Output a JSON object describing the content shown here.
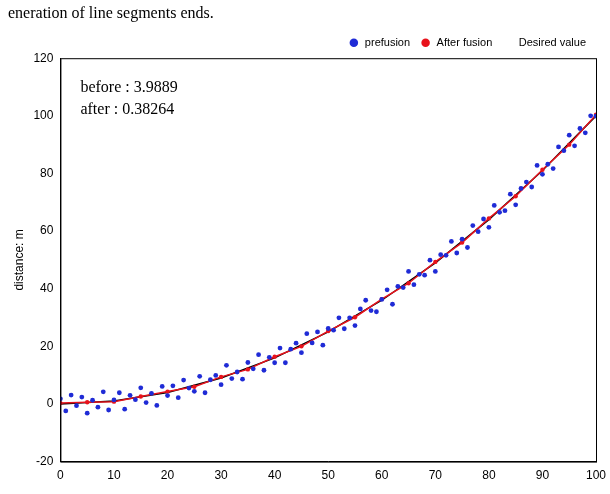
{
  "chart_data": {
    "type": "scatter",
    "title": "eneration of line segments ends.",
    "y_label": "distance: m",
    "annotations": [
      "before : 3.9889",
      "after : 0.38264"
    ],
    "xlim": [
      0,
      100
    ],
    "xticks": [
      0,
      10,
      20,
      30,
      40,
      50,
      60,
      70,
      80,
      90,
      100
    ],
    "ylim": [
      -20,
      120
    ],
    "yticks": [
      -20,
      0,
      20,
      40,
      60,
      80,
      100,
      120
    ],
    "grid": false,
    "legend": "upper right",
    "series": [
      {
        "name": "prefusion",
        "color": "#1f2bd6",
        "marker": "circle",
        "line_style": "none",
        "x": [
          0,
          1,
          2,
          3,
          4,
          5,
          6,
          7,
          8,
          9,
          10,
          11,
          12,
          13,
          14,
          15,
          16,
          17,
          18,
          19,
          20,
          21,
          22,
          23,
          24,
          25,
          26,
          27,
          28,
          29,
          30,
          31,
          32,
          33,
          34,
          35,
          36,
          37,
          38,
          39,
          40,
          41,
          42,
          43,
          44,
          45,
          46,
          47,
          48,
          49,
          50,
          51,
          52,
          53,
          54,
          55,
          56,
          57,
          58,
          59,
          60,
          61,
          62,
          63,
          64,
          65,
          66,
          67,
          68,
          69,
          70,
          71,
          72,
          73,
          74,
          75,
          76,
          77,
          78,
          79,
          80,
          81,
          82,
          83,
          84,
          85,
          86,
          87,
          88,
          89,
          90,
          91,
          92,
          93,
          94,
          95,
          96,
          97,
          98,
          99,
          100
        ],
        "values": [
          1.8,
          -2.4,
          3.1,
          -0.6,
          2.4,
          -3.2,
          1.3,
          -1.1,
          4.2,
          -2.1,
          1.4,
          3.9,
          -1.8,
          3.0,
          1.5,
          5.6,
          0.5,
          3.7,
          -0.5,
          6.1,
          2.9,
          6.3,
          2.2,
          8.3,
          5.5,
          4.4,
          9.6,
          3.9,
          8.4,
          9.9,
          6.7,
          13.4,
          8.8,
          11.1,
          8.6,
          14.4,
          12.2,
          17.1,
          11.7,
          16.2,
          14.3,
          19.4,
          14.3,
          19.0,
          21.1,
          17.8,
          24.4,
          21.2,
          25.0,
          20.4,
          26.2,
          25.6,
          29.9,
          26.1,
          29.9,
          27.2,
          33.0,
          36.0,
          32.4,
          32.0,
          36.3,
          39.6,
          34.6,
          40.8,
          40.4,
          46.0,
          41.4,
          45.0,
          44.7,
          49.9,
          46.0,
          51.8,
          51.6,
          56.4,
          52.4,
          57.2,
          54.3,
          61.9,
          59.8,
          64.2,
          61.3,
          68.9,
          66.5,
          67.1,
          72.8,
          69.1,
          74.8,
          77.0,
          75.3,
          82.8,
          79.7,
          83.2,
          81.7,
          89.2,
          87.9,
          93.3,
          89.6,
          95.6,
          94.1,
          100.0,
          99.9
        ]
      },
      {
        "name": "After fusion",
        "color": "#e8121b",
        "marker": "circle",
        "line_style": "solid",
        "x": [
          0,
          5,
          10,
          15,
          20,
          25,
          30,
          35,
          40,
          45,
          50,
          55,
          60,
          65,
          70,
          75,
          80,
          85,
          90,
          95,
          100
        ],
        "values": [
          0.3,
          0.6,
          0.8,
          2.6,
          4.3,
          6.0,
          9.4,
          12.0,
          16.4,
          20.0,
          25.3,
          30.1,
          36.4,
          41.9,
          49.3,
          56.0,
          64.4,
          72.1,
          81.3,
          90.0,
          100.4
        ]
      },
      {
        "name": "Desired value",
        "color": "#000000",
        "marker": "none",
        "line_style": "solid",
        "x": [
          0,
          10,
          20,
          30,
          40,
          50,
          60,
          70,
          80,
          90,
          100
        ],
        "values": [
          0,
          1,
          4,
          9,
          16,
          25,
          36,
          49,
          64,
          81,
          100
        ]
      }
    ]
  }
}
